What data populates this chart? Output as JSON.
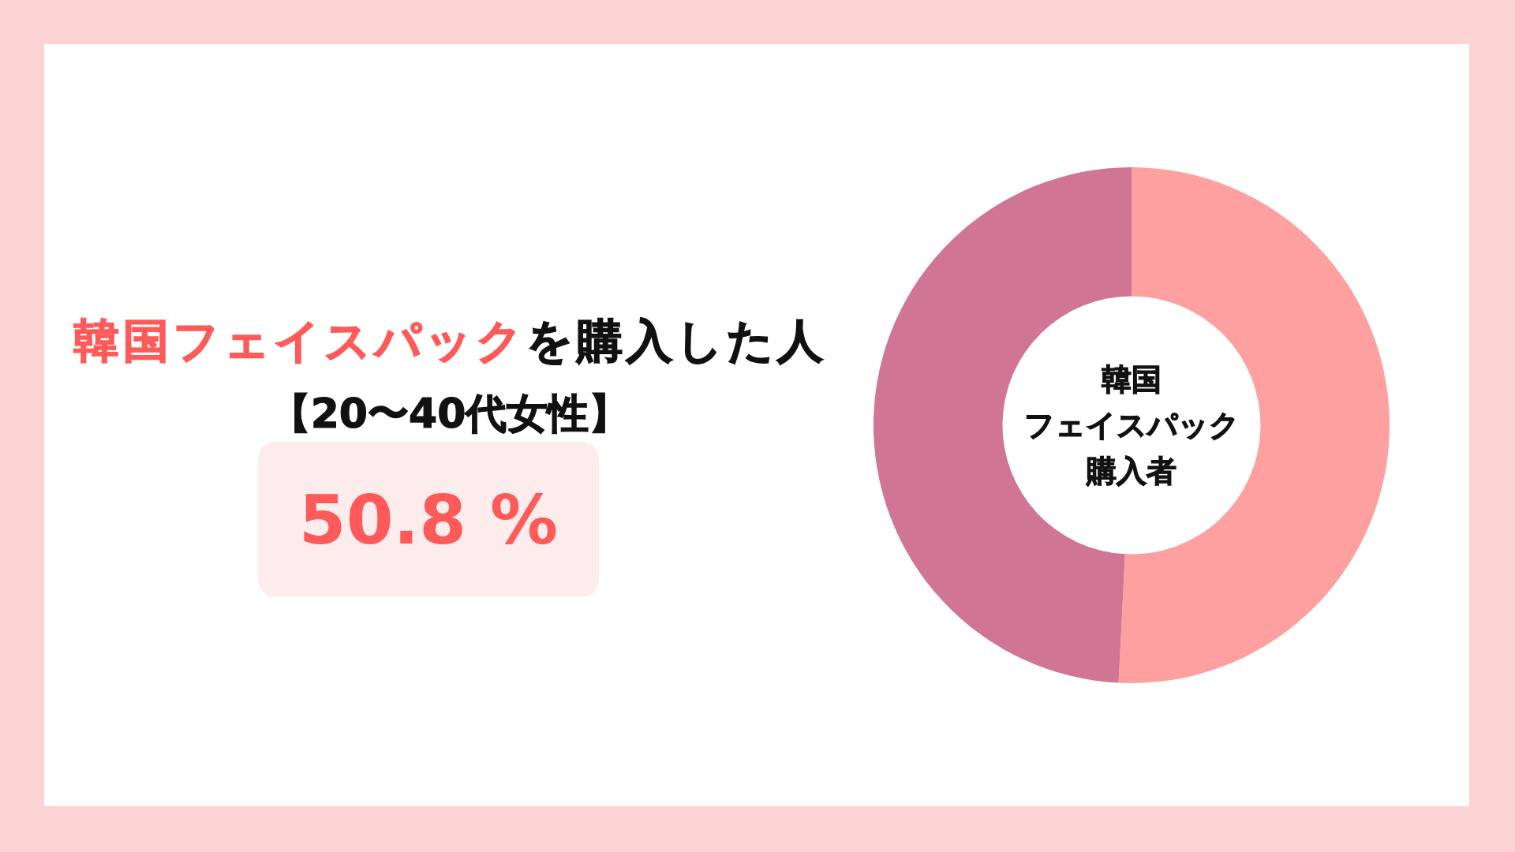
{
  "chart_data": {
    "type": "donut",
    "title": "韓国フェイスパックを購入した人",
    "subtitle": "【20〜40代女性】",
    "categories": [
      null,
      null
    ],
    "values": [
      50.8,
      49.2
    ],
    "colors": [
      "#ffa0a0",
      "#d07594"
    ],
    "annotations": [
      "50.8 %",
      "韓国",
      "フェイスパック",
      "購入者"
    ]
  }
}
